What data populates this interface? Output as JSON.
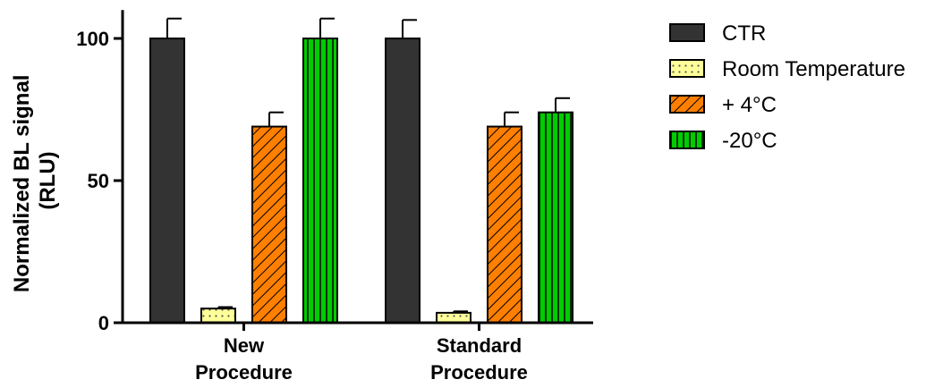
{
  "chart_data": {
    "type": "bar",
    "categories": [
      "New Procedure",
      "Standard Procedure"
    ],
    "category_lines": [
      [
        "New",
        "Procedure"
      ],
      [
        "Standard",
        "Procedure"
      ]
    ],
    "ylabel_lines": [
      "Normalized BL signal",
      "(RLU)"
    ],
    "ylim": [
      0,
      110
    ],
    "yticks": [
      0,
      50,
      100
    ],
    "grid": false,
    "legend_position": "top-right",
    "series": [
      {
        "name": "CTR",
        "values": [
          100,
          100
        ],
        "errors": [
          7,
          6.5
        ],
        "color": "#333333",
        "pattern": "solid"
      },
      {
        "name": "Room Temperature",
        "values": [
          5,
          3.5
        ],
        "errors": [
          0.5,
          0.5
        ],
        "color": "#ffff99",
        "pattern": "dots"
      },
      {
        "name": "+ 4°C",
        "values": [
          69,
          69
        ],
        "errors": [
          5,
          5
        ],
        "color": "#ff7f00",
        "pattern": "diagonal"
      },
      {
        "name": "-20°C",
        "values": [
          100,
          74
        ],
        "errors": [
          7,
          5
        ],
        "color": "#00cc00",
        "pattern": "vertical"
      }
    ]
  }
}
